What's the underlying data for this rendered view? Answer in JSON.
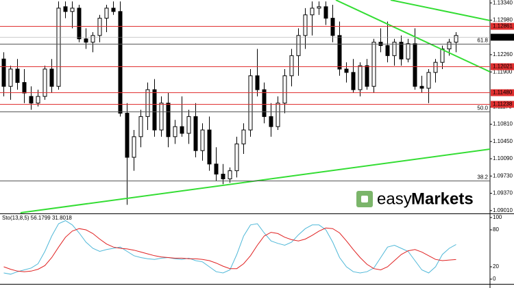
{
  "chart_data": {
    "type": "candlestick",
    "ylim": [
      1.0895,
      1.134
    ],
    "yticks": [
      {
        "value": 1.1334,
        "label": "1.13340"
      },
      {
        "value": 1.1298,
        "label": "1.12980"
      },
      {
        "value": 1.1226,
        "label": "1.12260"
      },
      {
        "value": 1.119,
        "label": "1.11900"
      },
      {
        "value": 1.1117,
        "label": "1.11170"
      },
      {
        "value": 1.1081,
        "label": "1.10810"
      },
      {
        "value": 1.1045,
        "label": "1.10450"
      },
      {
        "value": 1.1009,
        "label": "1.10090"
      },
      {
        "value": 1.0973,
        "label": "1.09730"
      },
      {
        "value": 1.0937,
        "label": "1.09370"
      },
      {
        "value": 1.0901,
        "label": "1.09010"
      }
    ],
    "levels": [
      {
        "value": 1.12861,
        "label": "1.12861"
      },
      {
        "value": 1.12021,
        "label": "1.12021"
      },
      {
        "value": 1.1148,
        "label": "1.11480"
      },
      {
        "value": 1.11238,
        "label": "1.11238"
      }
    ],
    "level_color": "#e03030",
    "current_price": {
      "value": 1.12624,
      "label": "1.12624"
    },
    "fib_levels": [
      {
        "label": "61.8",
        "price": 1.1249
      },
      {
        "label": "50.0",
        "price": 1.1108
      },
      {
        "label": "38.2",
        "price": 1.0964
      }
    ],
    "open": [
      1.1217,
      1.116,
      1.1196,
      1.1168,
      1.1139,
      1.1125,
      1.1139,
      1.1196,
      1.116,
      1.1326,
      1.1316,
      1.1323,
      1.1259,
      1.1252,
      1.1266,
      1.1302,
      1.1323,
      1.1316,
      1.1104,
      1.1012,
      1.1055,
      1.1097,
      1.1153,
      1.1069,
      1.1125,
      1.1055,
      1.1076,
      1.1062,
      1.1097,
      1.1026,
      1.1069,
      1.0998,
      1.0977,
      1.0967,
      1.0984,
      1.104,
      1.1069,
      1.1182,
      1.1153,
      1.1097,
      1.1076,
      1.1125,
      1.1182,
      1.1224,
      1.1266,
      1.1309,
      1.1323,
      1.1326,
      1.1302,
      1.1266,
      1.1196,
      1.1189,
      1.1153,
      1.1203,
      1.116,
      1.1252,
      1.1245,
      1.1224,
      1.1252,
      1.1217,
      1.1249,
      1.116,
      1.1156,
      1.1189,
      1.121,
      1.1238,
      1.1252
    ],
    "high": [
      1.1231,
      1.1203,
      1.1217,
      1.1196,
      1.116,
      1.1153,
      1.1203,
      1.1217,
      1.1337,
      1.1337,
      1.1337,
      1.133,
      1.1281,
      1.1273,
      1.1309,
      1.133,
      1.1337,
      1.1337,
      1.1125,
      1.1069,
      1.1111,
      1.1168,
      1.1175,
      1.1139,
      1.1146,
      1.109,
      1.1139,
      1.1111,
      1.1125,
      1.1083,
      1.1097,
      1.1033,
      1.0998,
      1.0991,
      1.1055,
      1.1083,
      1.1196,
      1.1238,
      1.1168,
      1.1125,
      1.1139,
      1.1196,
      1.1238,
      1.1281,
      1.1323,
      1.1337,
      1.1337,
      1.1337,
      1.133,
      1.1295,
      1.121,
      1.1217,
      1.121,
      1.1217,
      1.1259,
      1.1281,
      1.1295,
      1.1259,
      1.1266,
      1.1259,
      1.1281,
      1.1182,
      1.1196,
      1.1217,
      1.1245,
      1.1259,
      1.1273
    ],
    "low": [
      1.1139,
      1.1132,
      1.1153,
      1.1125,
      1.1111,
      1.1118,
      1.1132,
      1.1146,
      1.1153,
      1.1302,
      1.1281,
      1.1252,
      1.1238,
      1.1231,
      1.1252,
      1.1273,
      1.1309,
      1.1097,
      1.0913,
      1.0984,
      1.1033,
      1.1069,
      1.1055,
      1.1055,
      1.1033,
      1.104,
      1.1055,
      1.104,
      1.1012,
      1.1005,
      1.0984,
      1.0963,
      1.0956,
      1.0959,
      1.097,
      1.1019,
      1.1055,
      1.1139,
      1.1083,
      1.1055,
      1.1069,
      1.1104,
      1.116,
      1.1182,
      1.1238,
      1.1266,
      1.1309,
      1.1288,
      1.1252,
      1.1182,
      1.1168,
      1.1146,
      1.1139,
      1.1153,
      1.1146,
      1.1231,
      1.121,
      1.1203,
      1.1203,
      1.121,
      1.1153,
      1.1146,
      1.1125,
      1.1168,
      1.1196,
      1.1224,
      1.1231
    ],
    "close": [
      1.116,
      1.1196,
      1.1168,
      1.1146,
      1.1125,
      1.1139,
      1.1196,
      1.116,
      1.1323,
      1.1316,
      1.1323,
      1.1259,
      1.1252,
      1.1266,
      1.1302,
      1.1323,
      1.1316,
      1.1104,
      1.1012,
      1.1055,
      1.1097,
      1.1153,
      1.1069,
      1.1125,
      1.1055,
      1.1076,
      1.1062,
      1.1097,
      1.1026,
      1.1069,
      1.0998,
      1.0977,
      1.0967,
      1.0984,
      1.104,
      1.1069,
      1.1182,
      1.1153,
      1.1097,
      1.1076,
      1.1125,
      1.1182,
      1.1224,
      1.1266,
      1.1309,
      1.1323,
      1.1326,
      1.1302,
      1.1266,
      1.1196,
      1.1189,
      1.1153,
      1.1203,
      1.116,
      1.1252,
      1.1245,
      1.1224,
      1.1252,
      1.1217,
      1.1249,
      1.116,
      1.1156,
      1.1189,
      1.121,
      1.1238,
      1.1252,
      1.1266
    ],
    "watermark": [
      "easy",
      "Markets"
    ],
    "indicator": {
      "title": "Sto(13,8,5) 56.1799 31.8018",
      "ylim": [
        0,
        100
      ],
      "yticks": [
        100,
        80,
        20,
        0
      ],
      "series": [
        {
          "name": "%K",
          "color": "#4fb8d8",
          "values": [
            10,
            8,
            12,
            15,
            18,
            25,
            45,
            70,
            90,
            95,
            88,
            75,
            60,
            50,
            45,
            48,
            50,
            52,
            45,
            38,
            35,
            33,
            32,
            34,
            35,
            33,
            32,
            34,
            30,
            28,
            20,
            12,
            10,
            15,
            40,
            70,
            88,
            90,
            75,
            62,
            58,
            55,
            60,
            72,
            82,
            88,
            88,
            80,
            60,
            35,
            20,
            12,
            10,
            12,
            18,
            35,
            52,
            55,
            50,
            45,
            30,
            15,
            10,
            20,
            40,
            50,
            56.1799
          ]
        },
        {
          "name": "%D",
          "color": "#e02020",
          "values": [
            20,
            16,
            13,
            12,
            13,
            16,
            22,
            35,
            52,
            68,
            78,
            82,
            80,
            74,
            65,
            57,
            52,
            50,
            49,
            47,
            44,
            41,
            38,
            36,
            35,
            34,
            34,
            33,
            33,
            32,
            30,
            26,
            21,
            17,
            17,
            25,
            38,
            55,
            70,
            76,
            74,
            68,
            64,
            62,
            65,
            71,
            78,
            83,
            82,
            75,
            62,
            48,
            35,
            24,
            17,
            15,
            20,
            30,
            40,
            46,
            48,
            44,
            38,
            32,
            30,
            31,
            31.8018
          ]
        }
      ]
    }
  }
}
